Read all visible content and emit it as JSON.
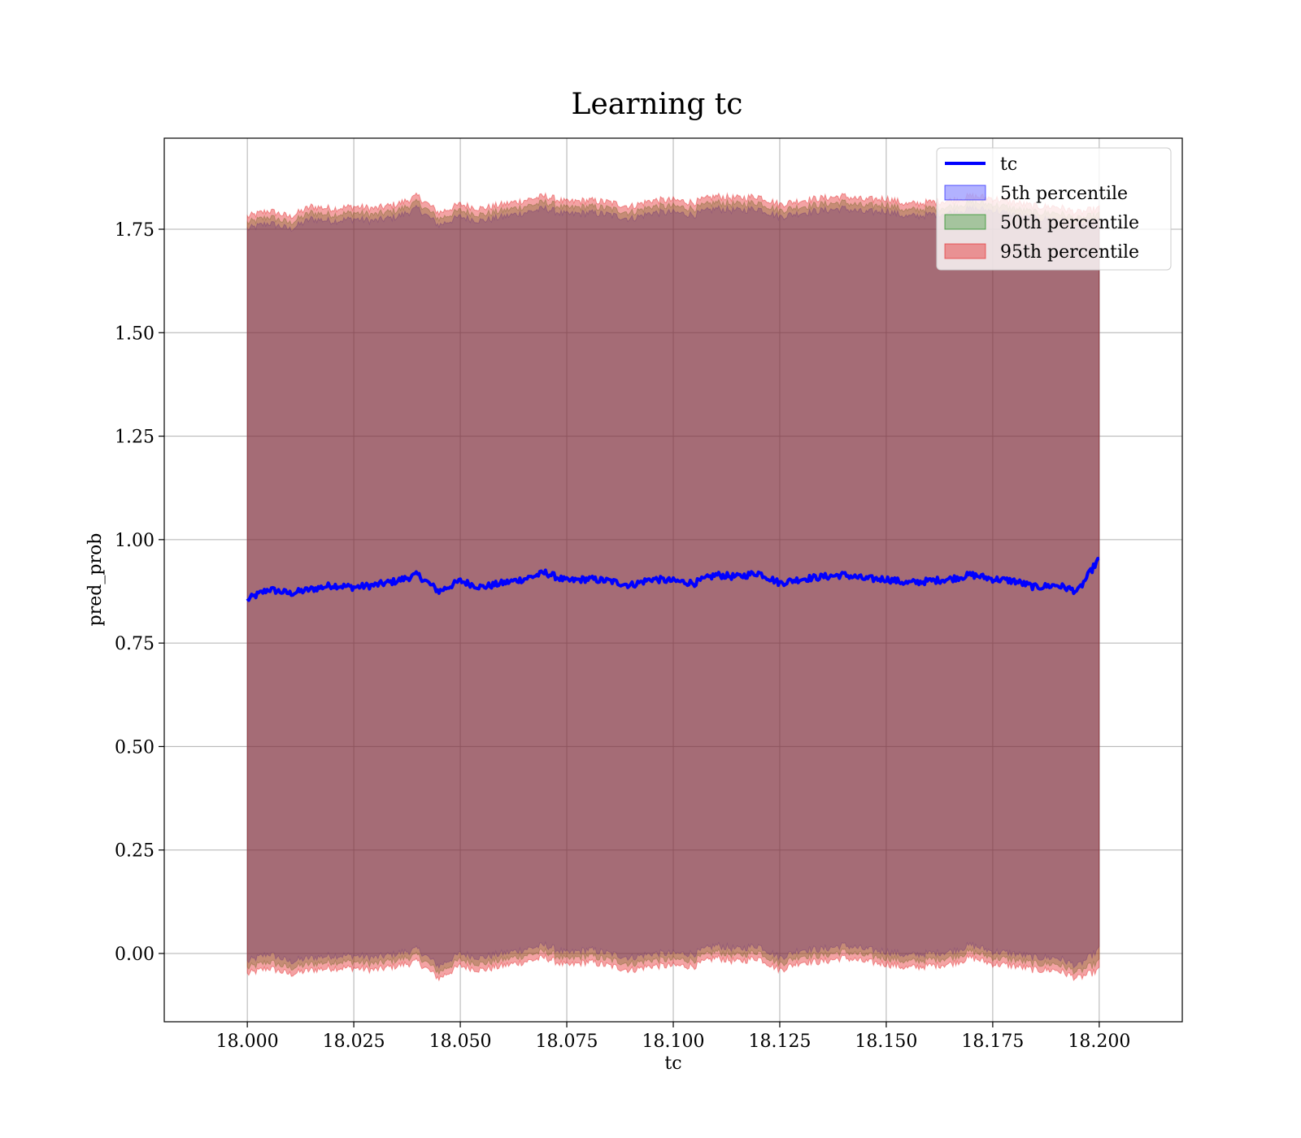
{
  "chart_data": {
    "type": "line",
    "title": "Learning tc",
    "xlabel": "tc",
    "ylabel": "pred_prob",
    "xlim": [
      17.9805,
      18.2195
    ],
    "ylim": [
      -0.165,
      1.97
    ],
    "x_range": [
      18.0,
      18.2
    ],
    "x_ticks": [
      18.0,
      18.025,
      18.05,
      18.075,
      18.1,
      18.125,
      18.15,
      18.175,
      18.2
    ],
    "x_tick_labels": [
      "18.000",
      "18.025",
      "18.050",
      "18.075",
      "18.100",
      "18.125",
      "18.150",
      "18.175",
      "18.200"
    ],
    "y_ticks": [
      0.0,
      0.25,
      0.5,
      0.75,
      1.0,
      1.25,
      1.5,
      1.75
    ],
    "y_tick_labels": [
      "0.00",
      "0.25",
      "0.50",
      "0.75",
      "1.00",
      "1.25",
      "1.50",
      "1.75"
    ],
    "grid": true,
    "legend_position": "top-right",
    "line_series": {
      "name": "tc",
      "color": "#0000ff",
      "x": [
        18.0,
        18.005,
        18.01,
        18.015,
        18.02,
        18.025,
        18.03,
        18.035,
        18.04,
        18.045,
        18.05,
        18.055,
        18.06,
        18.065,
        18.07,
        18.075,
        18.08,
        18.085,
        18.09,
        18.095,
        18.1,
        18.105,
        18.11,
        18.115,
        18.12,
        18.125,
        18.13,
        18.135,
        18.14,
        18.145,
        18.15,
        18.155,
        18.16,
        18.165,
        18.17,
        18.175,
        18.18,
        18.185,
        18.19,
        18.195,
        18.2
      ],
      "y": [
        0.855,
        0.88,
        0.87,
        0.88,
        0.89,
        0.885,
        0.89,
        0.9,
        0.915,
        0.875,
        0.9,
        0.885,
        0.895,
        0.905,
        0.92,
        0.9,
        0.905,
        0.9,
        0.89,
        0.905,
        0.9,
        0.895,
        0.915,
        0.91,
        0.92,
        0.895,
        0.905,
        0.91,
        0.915,
        0.905,
        0.905,
        0.895,
        0.9,
        0.905,
        0.915,
        0.905,
        0.9,
        0.885,
        0.89,
        0.875,
        0.955
      ]
    },
    "bands": [
      {
        "name": "5th percentile",
        "color": "#0000ff",
        "opacity": 0.3,
        "lower": [
          -0.02,
          -0.0,
          -0.02,
          -0.01,
          -0.005,
          -0.005,
          -0.01,
          0.0,
          0.01,
          -0.03,
          0.0,
          -0.01,
          0.0,
          0.01,
          0.02,
          0.0,
          0.01,
          0.0,
          -0.01,
          0.0,
          0.0,
          0.0,
          0.02,
          0.01,
          0.02,
          -0.01,
          0.01,
          0.01,
          0.02,
          0.01,
          0.005,
          -0.005,
          0.0,
          0.005,
          0.02,
          0.005,
          0.0,
          -0.01,
          -0.01,
          -0.03,
          0.01
        ],
        "upper": [
          1.75,
          1.765,
          1.75,
          1.775,
          1.77,
          1.775,
          1.77,
          1.78,
          1.8,
          1.76,
          1.78,
          1.77,
          1.78,
          1.79,
          1.8,
          1.785,
          1.79,
          1.785,
          1.775,
          1.79,
          1.79,
          1.785,
          1.8,
          1.795,
          1.8,
          1.78,
          1.79,
          1.795,
          1.8,
          1.79,
          1.795,
          1.78,
          1.785,
          1.79,
          1.8,
          1.795,
          1.785,
          1.775,
          1.775,
          1.76,
          1.77
        ]
      },
      {
        "name": "50th percentile",
        "color": "#008000",
        "opacity": 0.3,
        "lower": [
          -0.035,
          -0.02,
          -0.035,
          -0.025,
          -0.02,
          -0.02,
          -0.025,
          -0.015,
          -0.005,
          -0.045,
          -0.015,
          -0.025,
          -0.015,
          -0.005,
          0.005,
          -0.015,
          -0.005,
          -0.015,
          -0.025,
          -0.015,
          -0.015,
          -0.015,
          0.005,
          -0.005,
          0.005,
          -0.025,
          -0.005,
          -0.005,
          0.005,
          -0.005,
          -0.01,
          -0.02,
          -0.015,
          -0.01,
          0.005,
          -0.01,
          -0.015,
          -0.025,
          -0.025,
          -0.045,
          -0.02
        ],
        "upper": [
          1.765,
          1.78,
          1.765,
          1.79,
          1.785,
          1.79,
          1.785,
          1.795,
          1.815,
          1.775,
          1.795,
          1.785,
          1.795,
          1.805,
          1.815,
          1.8,
          1.805,
          1.8,
          1.79,
          1.805,
          1.805,
          1.8,
          1.815,
          1.81,
          1.815,
          1.795,
          1.805,
          1.81,
          1.815,
          1.805,
          1.81,
          1.795,
          1.8,
          1.805,
          1.815,
          1.81,
          1.8,
          1.79,
          1.79,
          1.775,
          1.785
        ]
      },
      {
        "name": "95th percentile",
        "color": "#e41a1c",
        "opacity": 0.4,
        "lower": [
          -0.05,
          -0.035,
          -0.05,
          -0.04,
          -0.035,
          -0.035,
          -0.04,
          -0.03,
          -0.02,
          -0.06,
          -0.03,
          -0.04,
          -0.03,
          -0.02,
          -0.01,
          -0.03,
          -0.02,
          -0.03,
          -0.04,
          -0.03,
          -0.03,
          -0.03,
          -0.01,
          -0.02,
          -0.01,
          -0.04,
          -0.02,
          -0.02,
          -0.01,
          -0.02,
          -0.025,
          -0.035,
          -0.03,
          -0.025,
          -0.01,
          -0.025,
          -0.03,
          -0.04,
          -0.04,
          -0.06,
          -0.04
        ],
        "upper": [
          1.78,
          1.795,
          1.78,
          1.805,
          1.8,
          1.805,
          1.8,
          1.81,
          1.83,
          1.79,
          1.81,
          1.8,
          1.81,
          1.82,
          1.83,
          1.815,
          1.82,
          1.815,
          1.805,
          1.82,
          1.82,
          1.815,
          1.83,
          1.825,
          1.83,
          1.81,
          1.82,
          1.825,
          1.83,
          1.82,
          1.825,
          1.81,
          1.815,
          1.82,
          1.83,
          1.825,
          1.815,
          1.805,
          1.805,
          1.79,
          1.8
        ]
      }
    ],
    "legend": [
      "tc",
      "5th percentile",
      "50th percentile",
      "95th percentile"
    ]
  }
}
